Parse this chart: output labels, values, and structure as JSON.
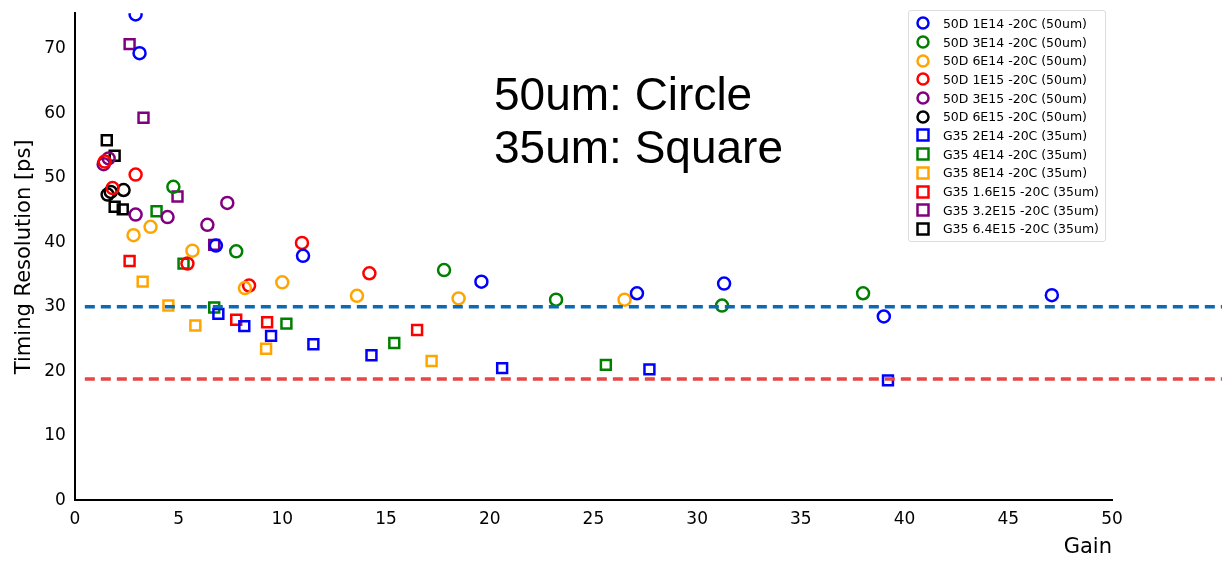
{
  "chart_data": {
    "type": "scatter",
    "xlabel": "Gain",
    "ylabel": "Timing Resolution [ps]",
    "xlim": [
      0,
      50
    ],
    "xticks": [
      0,
      5,
      10,
      15,
      20,
      25,
      30,
      35,
      40,
      45,
      50
    ],
    "ylim": [
      0,
      75.5
    ],
    "yticks": [
      0,
      10,
      20,
      30,
      40,
      50,
      60,
      70
    ],
    "grid": false,
    "legend": "top right",
    "annotations": [
      "50um: Circle",
      "35um: Square"
    ],
    "ref_lines": [
      {
        "axis": "y",
        "value": 30,
        "color": "#0a6ab8",
        "line_style": "dashed"
      },
      {
        "axis": "y",
        "value": 18.8,
        "color": "#e84545",
        "line_style": "dashed"
      }
    ],
    "series": [
      {
        "name": "50D 1E14 -20C (50um)",
        "color": "#0000ff",
        "marker": "circle",
        "x": [
          2.93,
          3.12,
          6.8,
          11.0,
          19.6,
          27.1,
          31.3,
          39.0,
          47.1
        ],
        "values": [
          75.3,
          69.3,
          39.5,
          37.9,
          33.9,
          32.1,
          33.6,
          28.5,
          31.8
        ]
      },
      {
        "name": "50D 3E14 -20C (50um)",
        "color": "#008000",
        "marker": "circle",
        "x": [
          4.75,
          7.78,
          17.8,
          23.2,
          31.2,
          38.0
        ],
        "values": [
          48.6,
          38.6,
          35.7,
          31.1,
          30.2,
          32.1
        ]
      },
      {
        "name": "50D 6E14 -20C (50um)",
        "color": "#ffa500",
        "marker": "circle",
        "x": [
          2.83,
          3.65,
          5.67,
          8.2,
          10.0,
          13.6,
          18.5,
          26.5
        ],
        "values": [
          41.1,
          42.4,
          38.7,
          32.9,
          33.8,
          31.7,
          31.3,
          31.1
        ]
      },
      {
        "name": "50D 1E15 -20C (50um)",
        "color": "#ff0000",
        "marker": "circle",
        "x": [
          1.44,
          1.82,
          2.93,
          5.43,
          8.4,
          10.95,
          14.2
        ],
        "values": [
          52.5,
          48.4,
          50.5,
          36.7,
          33.3,
          39.9,
          35.2
        ]
      },
      {
        "name": "50D 3E15 -20C (50um)",
        "color": "#800080",
        "marker": "circle",
        "x": [
          1.39,
          1.63,
          2.93,
          4.47,
          6.39,
          7.35
        ],
        "values": [
          52.1,
          53.0,
          44.3,
          43.9,
          42.7,
          46.1
        ]
      },
      {
        "name": "50D 6E15 -20C (50um)",
        "color": "#000000",
        "marker": "circle",
        "x": [
          1.58,
          1.73,
          2.35
        ],
        "values": [
          47.4,
          47.8,
          48.1
        ]
      },
      {
        "name": "G35 2E14 -20C (35um)",
        "color": "#0000ff",
        "marker": "square",
        "x": [
          6.92,
          8.17,
          9.46,
          11.5,
          14.3,
          20.6,
          27.7,
          39.2
        ],
        "values": [
          28.9,
          27.0,
          25.5,
          24.2,
          22.5,
          20.5,
          20.3,
          18.6
        ]
      },
      {
        "name": "G35 4E14 -20C (35um)",
        "color": "#008000",
        "marker": "square",
        "x": [
          3.94,
          5.24,
          6.72,
          10.2,
          15.4,
          25.6
        ],
        "values": [
          44.8,
          36.7,
          29.9,
          27.4,
          24.4,
          21.0
        ]
      },
      {
        "name": "G35 8E14 -20C (35um)",
        "color": "#ffa500",
        "marker": "square",
        "x": [
          3.27,
          4.51,
          5.81,
          9.22,
          17.2
        ],
        "values": [
          33.9,
          30.2,
          27.1,
          23.5,
          21.6
        ]
      },
      {
        "name": "G35 1.6E15 -20C (35um)",
        "color": "#ff0000",
        "marker": "square",
        "x": [
          2.64,
          7.78,
          9.27,
          16.5
        ],
        "values": [
          37.1,
          28.0,
          27.6,
          26.4
        ]
      },
      {
        "name": "G35 3.2E15 -20C (35um)",
        "color": "#800080",
        "marker": "square",
        "x": [
          2.64,
          3.31,
          4.95,
          6.72
        ],
        "values": [
          70.7,
          59.3,
          47.1,
          39.6
        ]
      },
      {
        "name": "G35 6.4E15 -20C (35um)",
        "color": "#000000",
        "marker": "square",
        "x": [
          1.54,
          1.92,
          1.92,
          2.31
        ],
        "values": [
          55.8,
          53.4,
          45.5,
          45.1
        ]
      }
    ]
  }
}
